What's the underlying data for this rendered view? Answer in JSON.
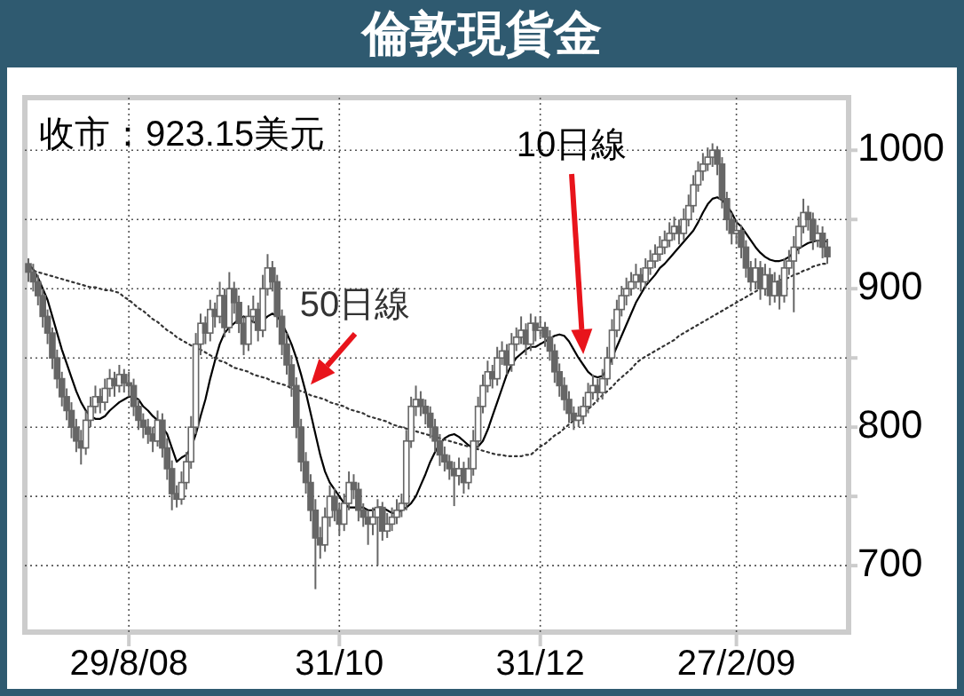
{
  "chart_data": {
    "type": "candlestick",
    "title": "倫敦現貨金",
    "color": "#666666",
    "grid": true,
    "annotations": [
      "收市：923.15美元"
    ],
    "categories": [
      null,
      null,
      null,
      null,
      null,
      null,
      null,
      null,
      null,
      null,
      null,
      null,
      null,
      null,
      null,
      null,
      null,
      null,
      null,
      null,
      null,
      "29/8/08",
      null,
      null,
      null,
      null,
      null,
      null,
      null,
      null,
      null,
      null,
      null,
      null,
      null,
      null,
      null,
      null,
      null,
      null,
      null,
      null,
      null,
      null,
      null,
      null,
      null,
      null,
      null,
      null,
      null,
      null,
      null,
      null,
      null,
      null,
      null,
      null,
      null,
      null,
      null,
      null,
      null,
      null,
      null,
      "31/10",
      null,
      null,
      null,
      null,
      null,
      null,
      null,
      null,
      null,
      null,
      null,
      null,
      null,
      null,
      null,
      null,
      null,
      null,
      null,
      null,
      null,
      null,
      null,
      null,
      null,
      null,
      null,
      null,
      null,
      null,
      null,
      null,
      null,
      null,
      null,
      null,
      null,
      null,
      null,
      null,
      null,
      "31/12",
      null,
      null,
      null,
      null,
      null,
      null,
      null,
      null,
      null,
      null,
      null,
      null,
      null,
      null,
      null,
      null,
      null,
      null,
      null,
      null,
      null,
      null,
      null,
      null,
      null,
      null,
      null,
      null,
      null,
      null,
      null,
      null,
      null,
      null,
      null,
      null,
      null,
      null,
      null,
      null,
      "27/2/09",
      null,
      null,
      null,
      null,
      null,
      null,
      null,
      null,
      null,
      null,
      null,
      null,
      null,
      null,
      null,
      null,
      null,
      null,
      null
    ],
    "ohlc": [
      [
        918,
        922,
        905,
        912
      ],
      [
        912,
        918,
        898,
        905
      ],
      [
        905,
        910,
        888,
        895
      ],
      [
        895,
        900,
        872,
        880
      ],
      [
        880,
        885,
        860,
        868
      ],
      [
        868,
        872,
        842,
        850
      ],
      [
        850,
        856,
        828,
        835
      ],
      [
        835,
        840,
        815,
        822
      ],
      [
        822,
        828,
        805,
        812
      ],
      [
        812,
        818,
        792,
        800
      ],
      [
        800,
        806,
        782,
        790
      ],
      [
        790,
        798,
        773,
        785
      ],
      [
        785,
        812,
        780,
        805
      ],
      [
        805,
        822,
        800,
        815
      ],
      [
        815,
        830,
        810,
        822
      ],
      [
        822,
        828,
        810,
        818
      ],
      [
        818,
        835,
        812,
        828
      ],
      [
        828,
        842,
        822,
        835
      ],
      [
        835,
        840,
        822,
        830
      ],
      [
        830,
        845,
        825,
        838
      ],
      [
        838,
        842,
        825,
        832
      ],
      [
        832,
        840,
        822,
        830
      ],
      [
        830,
        835,
        808,
        815
      ],
      [
        815,
        820,
        798,
        805
      ],
      [
        805,
        810,
        792,
        800
      ],
      [
        800,
        806,
        788,
        795
      ],
      [
        795,
        800,
        782,
        790
      ],
      [
        790,
        812,
        786,
        805
      ],
      [
        805,
        810,
        778,
        785
      ],
      [
        785,
        792,
        762,
        770
      ],
      [
        770,
        776,
        740,
        752
      ],
      [
        752,
        758,
        742,
        748
      ],
      [
        748,
        768,
        744,
        760
      ],
      [
        760,
        782,
        755,
        775
      ],
      [
        775,
        808,
        770,
        800
      ],
      [
        800,
        868,
        795,
        860
      ],
      [
        860,
        882,
        852,
        875
      ],
      [
        875,
        880,
        860,
        868
      ],
      [
        868,
        892,
        862,
        885
      ],
      [
        885,
        890,
        872,
        880
      ],
      [
        880,
        905,
        875,
        895
      ],
      [
        895,
        900,
        865,
        872
      ],
      [
        872,
        912,
        868,
        900
      ],
      [
        900,
        905,
        882,
        890
      ],
      [
        890,
        895,
        868,
        875
      ],
      [
        875,
        880,
        852,
        860
      ],
      [
        860,
        888,
        855,
        880
      ],
      [
        880,
        895,
        875,
        885
      ],
      [
        885,
        890,
        862,
        870
      ],
      [
        870,
        910,
        865,
        900
      ],
      [
        900,
        925,
        895,
        915
      ],
      [
        915,
        920,
        898,
        905
      ],
      [
        905,
        910,
        872,
        880
      ],
      [
        880,
        885,
        852,
        860
      ],
      [
        860,
        868,
        838,
        845
      ],
      [
        845,
        852,
        822,
        830
      ],
      [
        830,
        836,
        792,
        800
      ],
      [
        800,
        806,
        768,
        775
      ],
      [
        775,
        782,
        752,
        760
      ],
      [
        760,
        766,
        732,
        740
      ],
      [
        740,
        748,
        683,
        720
      ],
      [
        720,
        728,
        705,
        715
      ],
      [
        715,
        742,
        710,
        735
      ],
      [
        735,
        758,
        728,
        750
      ],
      [
        750,
        756,
        732,
        740
      ],
      [
        740,
        745,
        722,
        730
      ],
      [
        730,
        752,
        725,
        745
      ],
      [
        745,
        768,
        740,
        760
      ],
      [
        760,
        766,
        748,
        755
      ],
      [
        755,
        760,
        732,
        740
      ],
      [
        740,
        745,
        728,
        735
      ],
      [
        735,
        740,
        715,
        730
      ],
      [
        730,
        742,
        722,
        735
      ],
      [
        735,
        748,
        700,
        742
      ],
      [
        742,
        746,
        718,
        725
      ],
      [
        725,
        738,
        720,
        730
      ],
      [
        730,
        742,
        725,
        735
      ],
      [
        735,
        748,
        730,
        740
      ],
      [
        740,
        752,
        735,
        745
      ],
      [
        745,
        798,
        740,
        790
      ],
      [
        790,
        822,
        785,
        815
      ],
      [
        815,
        830,
        808,
        820
      ],
      [
        820,
        826,
        808,
        815
      ],
      [
        815,
        820,
        802,
        810
      ],
      [
        810,
        815,
        792,
        800
      ],
      [
        800,
        806,
        782,
        790
      ],
      [
        790,
        795,
        772,
        780
      ],
      [
        780,
        786,
        768,
        775
      ],
      [
        775,
        780,
        762,
        770
      ],
      [
        770,
        775,
        743,
        765
      ],
      [
        765,
        778,
        758,
        770
      ],
      [
        770,
        775,
        752,
        760
      ],
      [
        760,
        778,
        755,
        770
      ],
      [
        770,
        798,
        765,
        790
      ],
      [
        790,
        822,
        785,
        815
      ],
      [
        815,
        838,
        810,
        830
      ],
      [
        830,
        848,
        825,
        840
      ],
      [
        840,
        845,
        828,
        835
      ],
      [
        835,
        858,
        830,
        850
      ],
      [
        850,
        862,
        845,
        855
      ],
      [
        855,
        860,
        838,
        845
      ],
      [
        845,
        868,
        840,
        860
      ],
      [
        860,
        872,
        855,
        865
      ],
      [
        865,
        880,
        860,
        870
      ],
      [
        870,
        875,
        852,
        860
      ],
      [
        860,
        882,
        855,
        875
      ],
      [
        875,
        880,
        862,
        870
      ],
      [
        870,
        880,
        865,
        872
      ],
      [
        872,
        876,
        858,
        865
      ],
      [
        865,
        870,
        848,
        855
      ],
      [
        855,
        860,
        832,
        840
      ],
      [
        840,
        846,
        822,
        830
      ],
      [
        830,
        836,
        812,
        820
      ],
      [
        820,
        826,
        803,
        810
      ],
      [
        810,
        815,
        798,
        805
      ],
      [
        805,
        815,
        800,
        808
      ],
      [
        808,
        822,
        802,
        815
      ],
      [
        815,
        832,
        810,
        825
      ],
      [
        825,
        838,
        820,
        830
      ],
      [
        830,
        835,
        818,
        825
      ],
      [
        825,
        842,
        820,
        835
      ],
      [
        835,
        858,
        830,
        850
      ],
      [
        850,
        878,
        845,
        870
      ],
      [
        870,
        892,
        865,
        885
      ],
      [
        885,
        902,
        880,
        895
      ],
      [
        895,
        908,
        888,
        900
      ],
      [
        900,
        912,
        895,
        905
      ],
      [
        905,
        918,
        900,
        910
      ],
      [
        910,
        915,
        898,
        905
      ],
      [
        905,
        922,
        900,
        915
      ],
      [
        915,
        928,
        910,
        920
      ],
      [
        920,
        932,
        915,
        925
      ],
      [
        925,
        938,
        920,
        930
      ],
      [
        930,
        942,
        925,
        935
      ],
      [
        935,
        948,
        930,
        940
      ],
      [
        940,
        952,
        935,
        945
      ],
      [
        945,
        950,
        932,
        940
      ],
      [
        940,
        958,
        935,
        950
      ],
      [
        950,
        968,
        945,
        960
      ],
      [
        960,
        982,
        955,
        975
      ],
      [
        975,
        992,
        970,
        985
      ],
      [
        985,
        998,
        978,
        990
      ],
      [
        990,
        1002,
        985,
        995
      ],
      [
        995,
        1005,
        988,
        1000
      ],
      [
        1000,
        1003,
        982,
        990
      ],
      [
        990,
        995,
        958,
        965
      ],
      [
        965,
        970,
        942,
        950
      ],
      [
        950,
        955,
        932,
        940
      ],
      [
        940,
        950,
        932,
        942
      ],
      [
        942,
        946,
        922,
        930
      ],
      [
        930,
        935,
        908,
        915
      ],
      [
        915,
        920,
        898,
        905
      ],
      [
        905,
        922,
        900,
        915
      ],
      [
        915,
        920,
        892,
        900
      ],
      [
        900,
        918,
        895,
        910
      ],
      [
        910,
        915,
        888,
        895
      ],
      [
        895,
        912,
        890,
        905
      ],
      [
        905,
        910,
        885,
        895
      ],
      [
        895,
        922,
        890,
        915
      ],
      [
        915,
        928,
        910,
        920
      ],
      [
        920,
        938,
        883,
        930
      ],
      [
        930,
        952,
        925,
        945
      ],
      [
        945,
        965,
        940,
        955
      ],
      [
        955,
        960,
        942,
        950
      ],
      [
        950,
        955,
        928,
        935
      ],
      [
        935,
        946,
        930,
        940
      ],
      [
        940,
        945,
        922,
        930
      ],
      [
        930,
        936,
        918,
        923.15
      ]
    ],
    "series": [
      {
        "name": "10日線",
        "type": "line",
        "color": "#000000",
        "values": [
          918,
          914,
          908,
          900,
          892,
          880,
          868,
          856,
          846,
          836,
          826,
          818,
          812,
          808,
          806,
          806,
          808,
          812,
          815,
          818,
          820,
          822,
          822,
          820,
          815,
          812,
          808,
          805,
          800,
          795,
          785,
          775,
          778,
          780,
          785,
          795,
          808,
          820,
          835,
          848,
          860,
          868,
          872,
          875,
          878,
          880,
          878,
          876,
          875,
          877,
          880,
          882,
          880,
          875,
          868,
          860,
          850,
          838,
          825,
          810,
          795,
          780,
          768,
          760,
          755,
          750,
          745,
          742,
          742,
          742,
          742,
          740,
          740,
          742,
          742,
          740,
          738,
          738,
          740,
          742,
          745,
          750,
          758,
          766,
          775,
          782,
          788,
          792,
          794,
          795,
          793,
          790,
          787,
          785,
          786,
          790,
          798,
          808,
          818,
          828,
          838,
          845,
          850,
          853,
          856,
          858,
          858,
          860,
          862,
          864,
          866,
          867,
          866,
          862,
          856,
          850,
          845,
          840,
          837,
          836,
          837,
          842,
          850,
          858,
          866,
          874,
          882,
          890,
          896,
          902,
          906,
          910,
          915,
          918,
          922,
          926,
          930,
          934,
          938,
          942,
          948,
          955,
          961,
          965,
          966,
          964,
          960,
          955,
          948,
          945,
          940,
          935,
          930,
          926,
          923,
          921,
          920,
          920,
          921,
          923,
          926,
          929,
          931,
          933,
          934,
          935,
          935,
          934
        ]
      },
      {
        "name": "50日線",
        "type": "line",
        "color": "#333333",
        "line_style": "dotted",
        "values": [
          914,
          913,
          912,
          911,
          910,
          909,
          908,
          907,
          906,
          905,
          904,
          903,
          902,
          901,
          901,
          900,
          899,
          899,
          898,
          897,
          894,
          892,
          889,
          886,
          884,
          881,
          878,
          876,
          873,
          870,
          868,
          865,
          863,
          861,
          859,
          858,
          856,
          854,
          852,
          850,
          848,
          847,
          845,
          843,
          842,
          841,
          840,
          838,
          837,
          836,
          835,
          833,
          832,
          831,
          830,
          828,
          827,
          826,
          825,
          823,
          822,
          821,
          820,
          818,
          817,
          816,
          815,
          813,
          812,
          811,
          810,
          808,
          807,
          806,
          805,
          804,
          802,
          801,
          800,
          799,
          798,
          797,
          796,
          795,
          794,
          793,
          792,
          791,
          790,
          789,
          788,
          787,
          786,
          785,
          784,
          783,
          782,
          781,
          780,
          780,
          779,
          779,
          779,
          779,
          780,
          780,
          783,
          786,
          788,
          791,
          794,
          796,
          799,
          802,
          805,
          807,
          810,
          813,
          816,
          820,
          823,
          826,
          829,
          833,
          836,
          839,
          842,
          846,
          849,
          851,
          853,
          855,
          857,
          859,
          861,
          863,
          866,
          868,
          870,
          872,
          874,
          876,
          878,
          880,
          882,
          884,
          886,
          888,
          890,
          892,
          894,
          896,
          898,
          900,
          901,
          903,
          904,
          906,
          907,
          908,
          910,
          911,
          913,
          914,
          916,
          917,
          918,
          918
        ]
      }
    ],
    "ylim": [
      652,
      1038
    ],
    "yticks": [
      700,
      {
        "value": 750,
        "label": null
      },
      800,
      {
        "value": 850,
        "label": null
      },
      900,
      {
        "value": 950,
        "label": null
      },
      1000
    ]
  }
}
